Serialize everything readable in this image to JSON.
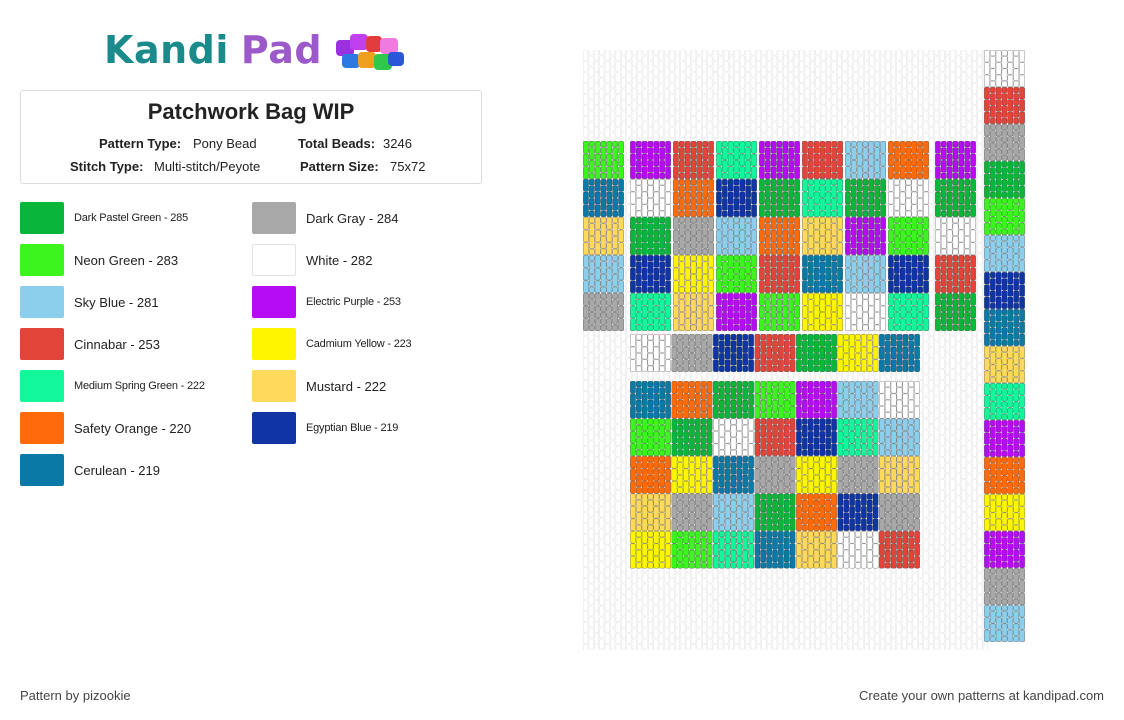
{
  "logo": {
    "part1": "Kandi",
    "part2": "Pad"
  },
  "pattern": {
    "title": "Patchwork Bag WIP",
    "type_label": "Pattern Type:",
    "type_value": "Pony Bead",
    "beads_label": "Total Beads:",
    "beads_value": "3246",
    "stitch_label": "Stitch Type:",
    "stitch_value": "Multi-stitch/Peyote",
    "size_label": "Pattern Size:",
    "size_value": "75x72"
  },
  "legend": {
    "left": [
      {
        "label": "Dark Pastel Green - 285",
        "color": "#0ab63a",
        "small": true
      },
      {
        "label": "Neon Green - 283",
        "color": "#3cf51f",
        "small": false
      },
      {
        "label": "Sky Blue - 281",
        "color": "#8ccfec",
        "small": false
      },
      {
        "label": "Cinnabar - 253",
        "color": "#e2443a",
        "small": false
      },
      {
        "label": "Medium Spring Green - 222",
        "color": "#12f79a",
        "small": true
      },
      {
        "label": "Safety Orange - 220",
        "color": "#ff6a0a",
        "small": false
      },
      {
        "label": "Cerulean - 219",
        "color": "#0a79a6",
        "small": false
      }
    ],
    "right": [
      {
        "label": "Dark Gray - 284",
        "color": "#a8a8a8",
        "small": false
      },
      {
        "label": "White - 282",
        "color": "#ffffff",
        "small": false
      },
      {
        "label": "Electric Purple - 253",
        "color": "#b50cf4",
        "small": true
      },
      {
        "label": "Cadmium Yellow - 223",
        "color": "#fff500",
        "small": true
      },
      {
        "label": "Mustard - 222",
        "color": "#ffd95c",
        "small": false
      },
      {
        "label": "Egyptian Blue - 219",
        "color": "#0f35a5",
        "small": true
      }
    ]
  },
  "grid_colors": {
    "G": "#0ab63a",
    "N": "#3cf51f",
    "S": "#8ccfec",
    "C": "#e2443a",
    "M": "#12f79a",
    "O": "#ff6a0a",
    "E": "#0a79a6",
    "D": "#a8a8a8",
    "W": "#ffffff",
    "P": "#b50cf4",
    "Y": "#fff500",
    "U": "#ffd95c",
    "B": "#0f35a5"
  },
  "panel_top": [
    "NPCMPCSOP",
    "EWOBGMGWG",
    "UGDSOUPNW",
    "SBYNCESBC",
    "DMUPNYWMG"
  ],
  "strip_mid": "WDBCGYE",
  "panel_bottom": [
    "EOGNPSW",
    "NGWCBMS",
    "OYEDYDU",
    "UDSGOBD",
    "YNMEUWC"
  ],
  "side_strip": "WCDGNSBEUMPOYPDS",
  "footer": {
    "credit": "Pattern by pizookie",
    "cta": "Create your own patterns at kandipad.com"
  }
}
